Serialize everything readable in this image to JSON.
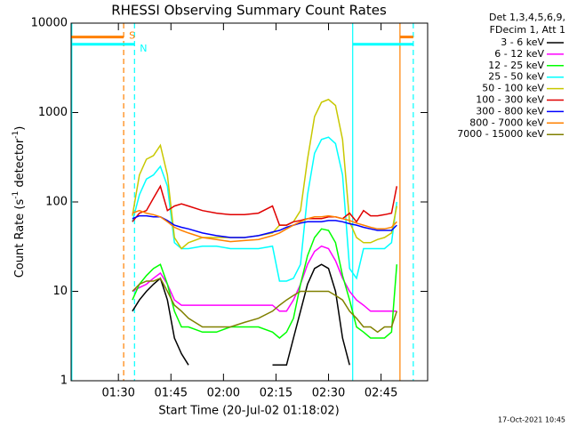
{
  "chart_data": {
    "type": "line",
    "title": "RHESSI Observing Summary Count Rates",
    "xlabel": "Start Time (20-Jul-02 01:18:02)",
    "ylabel": [
      "Count Rate (s",
      "-1",
      " detector",
      "-1",
      ")"
    ],
    "legend_header": [
      "Det 1,3,4,5,6,9,",
      "FDecim 1, Att 1"
    ],
    "timestamp": "17-Oct-2021 10:45",
    "log_y": true,
    "xlim": [
      76.5,
      178.3
    ],
    "ylim": [
      1,
      10000
    ],
    "xticks": [
      {
        "value": 90,
        "label": "01:30"
      },
      {
        "value": 105,
        "label": "01:45"
      },
      {
        "value": 120,
        "label": "02:00"
      },
      {
        "value": 135,
        "label": "02:15"
      },
      {
        "value": 150,
        "label": "02:30"
      },
      {
        "value": 165,
        "label": "02:45"
      }
    ],
    "yticks": [
      1,
      10,
      100,
      1000,
      10000
    ],
    "flags": [
      {
        "label": "S",
        "color": "#ff8000",
        "level": 7000,
        "spans": [
          [
            76.5,
            91.5
          ],
          [
            170.4,
            174.2
          ]
        ]
      },
      {
        "label": "N",
        "color": "#00ffff",
        "level": 5800,
        "spans": [
          [
            76.7,
            94.6
          ],
          [
            156.9,
            174.2
          ]
        ]
      }
    ],
    "vlines": [
      {
        "x": 76.7,
        "color": "#00ffff",
        "style": "solid"
      },
      {
        "x": 91.5,
        "color": "#ff8000",
        "style": "dashed"
      },
      {
        "x": 94.6,
        "color": "#00ffff",
        "style": "dashed"
      },
      {
        "x": 156.9,
        "color": "#00ffff",
        "style": "solid"
      },
      {
        "x": 170.4,
        "color": "#ff8000",
        "style": "solid"
      },
      {
        "x": 174.2,
        "color": "#00ffff",
        "style": "dashed"
      }
    ],
    "x": [
      94,
      96,
      98,
      100,
      102,
      104,
      106,
      108,
      110,
      114,
      118,
      122,
      126,
      130,
      134,
      136,
      138,
      140,
      142,
      144,
      146,
      148,
      150,
      152,
      154,
      156,
      158,
      160,
      162,
      164,
      166,
      168,
      169.5
    ],
    "series": [
      {
        "name": "3 - 6 keV",
        "color": "#000000",
        "values": [
          6,
          8,
          10,
          12,
          14,
          8,
          3,
          2,
          1.5,
          null,
          null,
          null,
          null,
          null,
          1.5,
          1.5,
          1.5,
          3,
          6,
          12,
          18,
          20,
          18,
          10,
          3,
          1.5,
          null,
          null,
          null,
          null,
          null,
          null,
          null
        ]
      },
      {
        "name": "6 - 12 keV",
        "color": "#ff00ff",
        "values": [
          10,
          11,
          12,
          14,
          16,
          12,
          8,
          7,
          7,
          7,
          7,
          7,
          7,
          7,
          7,
          6,
          6,
          8,
          12,
          20,
          28,
          32,
          30,
          22,
          14,
          10,
          8,
          7,
          6,
          6,
          6,
          6,
          6
        ]
      },
      {
        "name": "12 - 25 keV",
        "color": "#00ff00",
        "values": [
          8,
          12,
          15,
          18,
          20,
          12,
          6,
          4,
          4,
          3.5,
          3.5,
          4,
          4,
          4,
          3.5,
          3,
          3.5,
          5,
          12,
          25,
          40,
          50,
          48,
          35,
          15,
          8,
          4,
          3.5,
          3,
          3,
          3,
          3.5,
          20
        ]
      },
      {
        "name": "25 - 50 keV",
        "color": "#00ffff",
        "values": [
          60,
          120,
          180,
          200,
          250,
          150,
          35,
          30,
          30,
          32,
          32,
          30,
          30,
          30,
          32,
          13,
          13,
          14,
          20,
          120,
          350,
          500,
          530,
          450,
          200,
          18,
          14,
          30,
          30,
          30,
          30,
          35,
          100
        ]
      },
      {
        "name": "50 - 100 keV",
        "color": "#c8c800",
        "values": [
          70,
          200,
          300,
          330,
          430,
          200,
          40,
          30,
          35,
          40,
          40,
          40,
          40,
          42,
          45,
          55,
          55,
          60,
          80,
          300,
          900,
          1300,
          1400,
          1200,
          500,
          60,
          40,
          35,
          35,
          38,
          40,
          45,
          90
        ]
      },
      {
        "name": "100 - 300 keV",
        "color": "#e00000",
        "values": [
          60,
          75,
          80,
          110,
          150,
          80,
          90,
          95,
          90,
          80,
          75,
          72,
          72,
          75,
          90,
          55,
          55,
          60,
          62,
          65,
          65,
          65,
          68,
          68,
          65,
          75,
          60,
          80,
          70,
          70,
          72,
          75,
          150
        ]
      },
      {
        "name": "300 - 800 keV",
        "color": "#0000ff",
        "values": [
          65,
          70,
          70,
          68,
          68,
          62,
          55,
          52,
          50,
          45,
          42,
          40,
          40,
          42,
          46,
          48,
          52,
          55,
          58,
          60,
          60,
          60,
          62,
          62,
          60,
          57,
          55,
          52,
          50,
          48,
          48,
          48,
          55
        ]
      },
      {
        "name": "800 - 7000 keV",
        "color": "#ff8000",
        "values": [
          75,
          80,
          75,
          72,
          68,
          60,
          52,
          48,
          45,
          40,
          38,
          36,
          37,
          38,
          42,
          45,
          50,
          55,
          60,
          65,
          68,
          68,
          70,
          68,
          65,
          62,
          58,
          55,
          52,
          50,
          50,
          52,
          60
        ]
      },
      {
        "name": "7000 - 15000 keV",
        "color": "#808000",
        "values": [
          10,
          12,
          13,
          13,
          14,
          10,
          7,
          6,
          5,
          4,
          4,
          4,
          4.5,
          5,
          6,
          7,
          8,
          9,
          10,
          10,
          10,
          10,
          10,
          9,
          8,
          6,
          5,
          4,
          4,
          3.5,
          4,
          4,
          6
        ]
      }
    ]
  }
}
